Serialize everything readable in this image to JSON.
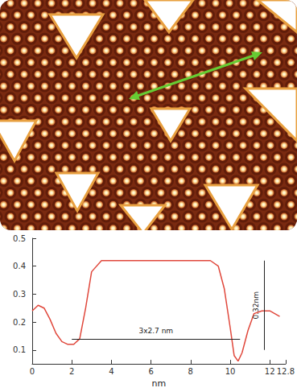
{
  "chart_data": {
    "type": "line",
    "color": "#e0483c",
    "x_label": "nm",
    "x": [
      0,
      0.3,
      0.6,
      0.9,
      1.2,
      1.5,
      1.8,
      2.1,
      2.4,
      2.7,
      3.0,
      3.5,
      4,
      5,
      6,
      7,
      8,
      9,
      9.4,
      9.7,
      10,
      10.2,
      10.4,
      10.6,
      10.9,
      11.2,
      11.6,
      12,
      12.5
    ],
    "values": [
      0.24,
      0.26,
      0.25,
      0.21,
      0.16,
      0.13,
      0.12,
      0.12,
      0.14,
      0.25,
      0.38,
      0.42,
      0.42,
      0.42,
      0.42,
      0.42,
      0.42,
      0.42,
      0.4,
      0.32,
      0.18,
      0.08,
      0.06,
      0.09,
      0.17,
      0.23,
      0.24,
      0.24,
      0.22
    ],
    "xlim": [
      0,
      12.8
    ],
    "xticks": [
      0,
      2,
      4,
      6,
      8,
      10,
      12
    ],
    "ylim": [
      0.05,
      0.5
    ],
    "yticks": [
      0.1,
      0.2,
      0.3,
      0.4,
      0.5
    ],
    "grid": false,
    "annotations": [
      {
        "text": "3x2.7 nm",
        "x": [
          2,
          10.5
        ],
        "y": [
          0.14,
          0.14
        ]
      },
      {
        "text": "0.32nm",
        "x": [
          11.7,
          11.7
        ],
        "y": [
          0.1,
          0.42
        ]
      }
    ]
  }
}
